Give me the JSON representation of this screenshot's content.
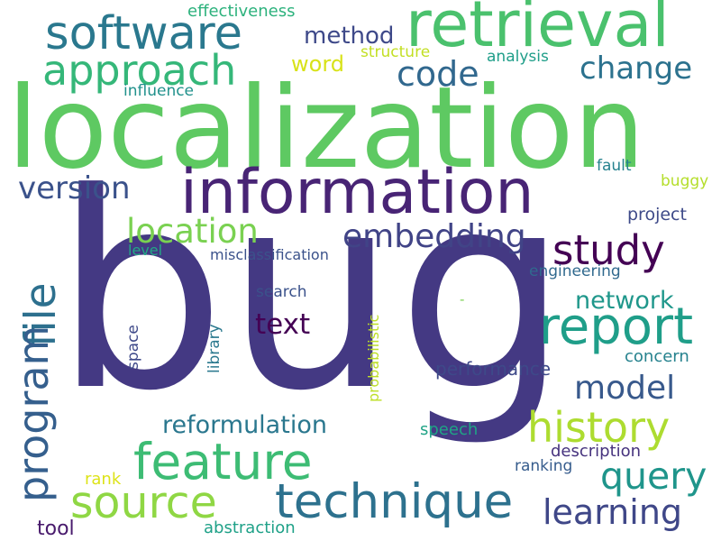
{
  "words": [
    {
      "text": "bug",
      "color": "#443983"
    },
    {
      "text": "localization",
      "color": "#5ec962"
    },
    {
      "text": "information",
      "color": "#482475"
    },
    {
      "text": "retrieval",
      "color": "#4ac16d"
    },
    {
      "text": "software",
      "color": "#2a788e"
    },
    {
      "text": "approach",
      "color": "#35b779"
    },
    {
      "text": "method",
      "color": "#3e4989"
    },
    {
      "text": "code",
      "color": "#31688e"
    },
    {
      "text": "change",
      "color": "#2c728e"
    },
    {
      "text": "word",
      "color": "#d8e219"
    },
    {
      "text": "effectiveness",
      "color": "#2db27d"
    },
    {
      "text": "structure",
      "color": "#c2df23"
    },
    {
      "text": "analysis",
      "color": "#1f9e89"
    },
    {
      "text": "influence",
      "color": "#21918c"
    },
    {
      "text": "version",
      "color": "#3b528b"
    },
    {
      "text": "fault",
      "color": "#26828e"
    },
    {
      "text": "buggy",
      "color": "#b5de2b"
    },
    {
      "text": "project",
      "color": "#3e4a89"
    },
    {
      "text": "location",
      "color": "#7ad151"
    },
    {
      "text": "embedding",
      "color": "#414487"
    },
    {
      "text": "study",
      "color": "#440154"
    },
    {
      "text": "file",
      "color": "#2d708e"
    },
    {
      "text": "program",
      "color": "#355f8d"
    },
    {
      "text": "level",
      "color": "#22a884"
    },
    {
      "text": "misclassification",
      "color": "#3b528b"
    },
    {
      "text": "engineering",
      "color": "#30698e"
    },
    {
      "text": "network",
      "color": "#1f978b"
    },
    {
      "text": "search",
      "color": "#3b528b"
    },
    {
      "text": "-",
      "color": "#7ad151"
    },
    {
      "text": "report",
      "color": "#1f9e89"
    },
    {
      "text": "text",
      "color": "#440154"
    },
    {
      "text": "probabilistic",
      "color": "#bddf26"
    },
    {
      "text": "library",
      "color": "#2a788e"
    },
    {
      "text": "space",
      "color": "#3e4989"
    },
    {
      "text": "performance",
      "color": "#3e4989"
    },
    {
      "text": "concern",
      "color": "#26828e"
    },
    {
      "text": "model",
      "color": "#38598c"
    },
    {
      "text": "reformulation",
      "color": "#2a778e"
    },
    {
      "text": "history",
      "color": "#addc30"
    },
    {
      "text": "feature",
      "color": "#3dbc74"
    },
    {
      "text": "speech",
      "color": "#20a386"
    },
    {
      "text": "description",
      "color": "#46337e"
    },
    {
      "text": "query",
      "color": "#1f958b"
    },
    {
      "text": "ranking",
      "color": "#365c8d"
    },
    {
      "text": "rank",
      "color": "#dde318"
    },
    {
      "text": "source",
      "color": "#8fd744"
    },
    {
      "text": "technique",
      "color": "#2d718e"
    },
    {
      "text": "learning",
      "color": "#3f4788"
    },
    {
      "text": "tool",
      "color": "#481a6c"
    },
    {
      "text": "abstraction",
      "color": "#1fa188"
    }
  ]
}
